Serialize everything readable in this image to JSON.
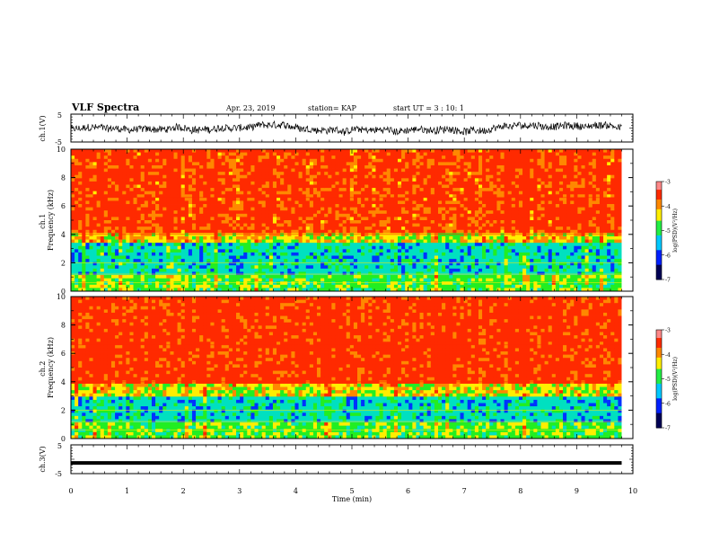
{
  "header": {
    "title": "VLF Spectra",
    "date": "Apr. 23, 2019",
    "station": "station= KAP",
    "start": "start  UT  =   3  : 10: 1"
  },
  "colors": {
    "red": "#ff2a00",
    "orange": "#ff8800",
    "yellow": "#ffee00",
    "green": "#22ee22",
    "cyan": "#00e0c0",
    "blue": "#0033ff",
    "navy": "#000066"
  },
  "chart_data": [
    {
      "type": "line",
      "panel": "ch1-waveform",
      "ylabel": "ch.1(V)",
      "ylim": [
        -5,
        5
      ],
      "yticks": [
        "5",
        "-5"
      ],
      "description_series": "noisy voltage signal, roughly between -3 and +2 V",
      "xlim": [
        0,
        10
      ]
    },
    {
      "type": "heatmap",
      "panel": "ch1-spectrogram",
      "ylabel": "ch.1\nFrequency  (kHz)",
      "ylim": [
        0,
        10
      ],
      "yticks": [
        "0",
        "2",
        "4",
        "6",
        "8",
        "10"
      ],
      "xlim": [
        0,
        10
      ],
      "colorbar": {
        "label": "log(PSD)(V²/Hz)",
        "range": [
          -7,
          -3
        ],
        "ticks": [
          "-3",
          "-4",
          "-5",
          "-6",
          "-7"
        ]
      },
      "bands": [
        {
          "fmin": 0,
          "fmax": 1.2,
          "level": -4.8
        },
        {
          "fmin": 1.2,
          "fmax": 3.3,
          "level": -5.4
        },
        {
          "fmin": 3.3,
          "fmax": 4.2,
          "level": -4.4
        },
        {
          "fmin": 4.2,
          "fmax": 10,
          "level": -3.7
        }
      ]
    },
    {
      "type": "heatmap",
      "panel": "ch2-spectrogram",
      "ylabel": "ch.2\nFrequency  (kHz)",
      "ylim": [
        0,
        10
      ],
      "yticks": [
        "0",
        "2",
        "4",
        "6",
        "8",
        "10"
      ],
      "xlim": [
        0,
        10
      ],
      "colorbar": {
        "label": "log(PSD)(V²/Hz)",
        "range": [
          -7,
          -3
        ],
        "ticks": [
          "-3",
          "-4",
          "-5",
          "-6",
          "-7"
        ]
      },
      "bands": [
        {
          "fmin": 0,
          "fmax": 1.2,
          "level": -4.8
        },
        {
          "fmin": 1.2,
          "fmax": 3.0,
          "level": -5.4
        },
        {
          "fmin": 3.0,
          "fmax": 3.8,
          "level": -4.4
        },
        {
          "fmin": 3.8,
          "fmax": 10,
          "level": -3.6
        }
      ]
    },
    {
      "type": "line",
      "panel": "ch3-waveform",
      "ylabel": "ch.3(V)",
      "ylim": [
        -5,
        5
      ],
      "yticks": [
        "5",
        "-5"
      ],
      "xlim": [
        0,
        10
      ],
      "constant_value": -1.3
    }
  ],
  "xaxis": {
    "label": "Time  (min)",
    "ticks": [
      "0",
      "1",
      "2",
      "3",
      "4",
      "5",
      "6",
      "7",
      "8",
      "9",
      "10"
    ],
    "data_end": 9.8
  }
}
